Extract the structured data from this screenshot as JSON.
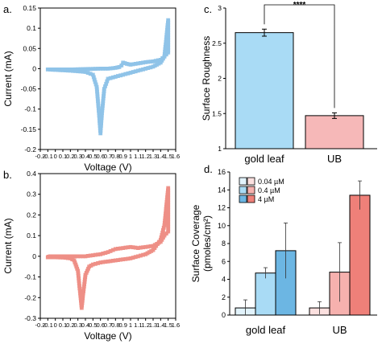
{
  "colors": {
    "blue_line": "#8fc3e8",
    "blue_dark": "#6fb0e0",
    "red_line": "#ee8f86",
    "red_dark": "#e07868",
    "bar_blue": "#a9dbf5",
    "bar_pink": "#f6b8b8",
    "sky_light": "#e2f3fc",
    "sky_mid": "#a9dbf5",
    "sky_dark": "#6cb6e3",
    "pink_light": "#fbe0df",
    "pink_mid": "#f6b1ae",
    "pink_dark": "#ef8079"
  },
  "panels": {
    "a": {
      "letter": "a."
    },
    "b": {
      "letter": "b."
    },
    "c": {
      "letter": "c."
    },
    "d": {
      "letter": "d."
    }
  },
  "chart_data": [
    {
      "id": "a",
      "type": "line",
      "xlabel": "Voltage (V)",
      "ylabel": "Current (mA)",
      "xlim": [
        -0.2,
        1.6
      ],
      "ylim": [
        -0.2,
        0.15
      ],
      "xticks": [
        "-0.2",
        "-0.1",
        "0",
        "0.1",
        "0.2",
        "0.3",
        "0.4",
        "0.5",
        "0.6",
        "0.7",
        "0.8",
        "0.9",
        "1",
        "1.1",
        "1.2",
        "1.3",
        "1.4",
        "1.5",
        "1.6"
      ],
      "yticks": [
        "0.15",
        "0.1",
        "0.05",
        "0",
        "-0.05",
        "-0.1",
        "-0.15",
        "-0.2"
      ],
      "series": [
        {
          "color": "blue_line",
          "x": [
            -0.1,
            0.0,
            0.2,
            0.4,
            0.5,
            0.55,
            0.58,
            0.6,
            0.62,
            0.65,
            0.7,
            0.8,
            0.9,
            1.0,
            1.1,
            1.2,
            1.3,
            1.4,
            1.45,
            1.5,
            1.5,
            1.45,
            1.4,
            1.3,
            1.2,
            1.1,
            1.0,
            0.95,
            0.9,
            0.88,
            0.85,
            0.8,
            0.7,
            0.6,
            0.4,
            0.2,
            0.0,
            -0.1
          ],
          "y": [
            -0.002,
            -0.003,
            -0.005,
            -0.008,
            -0.015,
            -0.045,
            -0.11,
            -0.16,
            -0.11,
            -0.05,
            -0.025,
            -0.02,
            -0.015,
            -0.01,
            -0.005,
            0.0,
            0.005,
            0.015,
            0.03,
            0.12,
            0.04,
            0.03,
            0.022,
            0.018,
            0.016,
            0.013,
            0.01,
            0.012,
            0.015,
            0.008,
            0.004,
            0.002,
            0.0,
            0.0,
            -0.001,
            -0.002,
            -0.002,
            -0.002
          ]
        }
      ]
    },
    {
      "id": "b",
      "type": "line",
      "xlabel": "Voltage (V)",
      "ylabel": "Current (mA)",
      "xlim": [
        -0.2,
        1.6
      ],
      "ylim": [
        -0.3,
        0.4
      ],
      "xticks": [
        "-0.2",
        "-0.1",
        "0",
        "0.1",
        "0.2",
        "0.3",
        "0.4",
        "0.5",
        "0.6",
        "0.7",
        "0.8",
        "0.9",
        "1",
        "1.1",
        "1.2",
        "1.3",
        "1.4",
        "1.5",
        "1.6"
      ],
      "yticks": [
        "0.4",
        "0.3",
        "0.2",
        "0.1",
        "0",
        "-0.1",
        "-0.2",
        "-0.3"
      ],
      "series": [
        {
          "color": "red_line",
          "x": [
            -0.1,
            0.0,
            0.1,
            0.2,
            0.25,
            0.3,
            0.33,
            0.35,
            0.37,
            0.4,
            0.45,
            0.5,
            0.6,
            0.8,
            1.0,
            1.1,
            1.2,
            1.3,
            1.4,
            1.45,
            1.5,
            1.5,
            1.45,
            1.4,
            1.3,
            1.2,
            1.1,
            1.0,
            0.9,
            0.8,
            0.7,
            0.6,
            0.4,
            0.2,
            0.0,
            -0.1
          ],
          "y": [
            -0.005,
            -0.005,
            -0.006,
            -0.01,
            -0.02,
            -0.07,
            -0.18,
            -0.25,
            -0.18,
            -0.09,
            -0.05,
            -0.04,
            -0.03,
            -0.02,
            -0.01,
            0.0,
            0.01,
            0.03,
            0.08,
            0.15,
            0.33,
            0.12,
            0.1,
            0.07,
            0.05,
            0.045,
            0.04,
            0.045,
            0.04,
            0.035,
            0.02,
            0.01,
            0.0,
            0.0,
            0.0,
            0.0
          ]
        }
      ]
    },
    {
      "id": "c",
      "type": "bar",
      "ylabel": "Surface Roughness",
      "ylim": [
        1.0,
        3.0
      ],
      "yticks": [
        "3",
        "2.5",
        "2",
        "1.5",
        "1"
      ],
      "categories": [
        "gold leaf",
        "UB"
      ],
      "values": [
        2.65,
        1.47
      ],
      "errors": [
        0.05,
        0.04
      ],
      "bar_colors": [
        "bar_blue",
        "bar_pink"
      ],
      "significance": "****"
    },
    {
      "id": "d",
      "type": "bar",
      "ylabel": [
        "Surface Coverage",
        "(pmoles/cm²)"
      ],
      "ylim": [
        0,
        16
      ],
      "yticks": [
        "16",
        "14",
        "12",
        "10",
        "8",
        "6",
        "4",
        "2",
        "0"
      ],
      "categories": [
        "gold leaf",
        "UB"
      ],
      "legend_labels": [
        "0.04 µM",
        "0.4 µM",
        "4 µM"
      ],
      "series": [
        {
          "values": [
            0.8,
            0.8
          ],
          "errors": [
            0.9,
            0.7
          ]
        },
        {
          "values": [
            4.7,
            4.8
          ],
          "errors": [
            0.6,
            3.3
          ]
        },
        {
          "values": [
            7.2,
            13.4
          ],
          "errors": [
            3.1,
            1.6
          ]
        }
      ]
    }
  ]
}
